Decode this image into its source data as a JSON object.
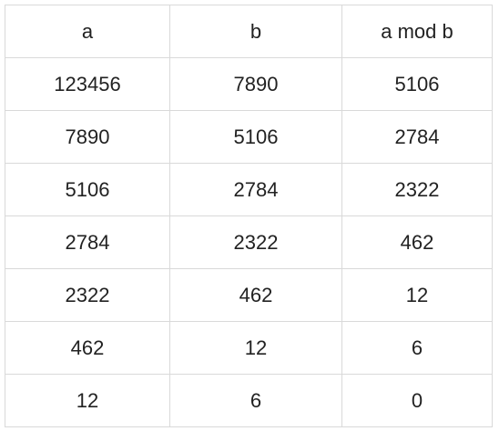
{
  "table": {
    "headers": [
      "a",
      "b",
      "a mod b"
    ],
    "rows": [
      [
        "123456",
        "7890",
        "5106"
      ],
      [
        "7890",
        "5106",
        "2784"
      ],
      [
        "5106",
        "2784",
        "2322"
      ],
      [
        "2784",
        "2322",
        "462"
      ],
      [
        "2322",
        "462",
        "12"
      ],
      [
        "462",
        "12",
        "6"
      ],
      [
        "12",
        "6",
        "0"
      ]
    ]
  }
}
